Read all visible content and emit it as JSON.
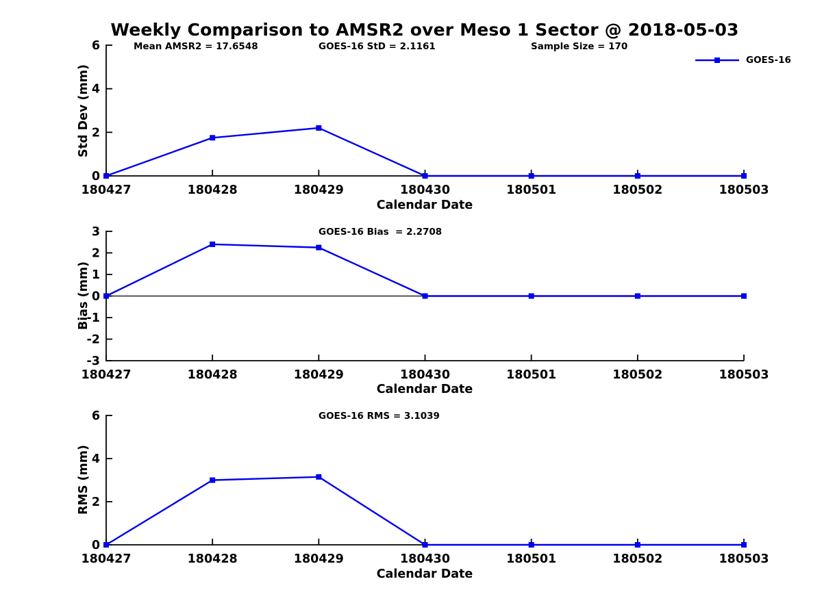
{
  "title": "Weekly Comparison to AMSR2 over Meso 1 Sector @ 2018-05-03",
  "colors": {
    "line": "#0000EE",
    "axis": "#000000",
    "text": "#000000",
    "background": "#FFFFFF"
  },
  "chart_data": [
    {
      "type": "line",
      "categories": [
        "180427",
        "180428",
        "180429",
        "180430",
        "180501",
        "180502",
        "180503"
      ],
      "series": [
        {
          "name": "GOES-16",
          "color": "#0000EE",
          "marker": "filled-square",
          "values": [
            0,
            1.75,
            2.2,
            0,
            0,
            0,
            0
          ]
        }
      ],
      "xlabel": "Calendar Date",
      "ylabel": "Std Dev (mm)",
      "ylim": [
        0,
        6
      ],
      "yticks": [
        0,
        2,
        4,
        6
      ],
      "grid": false,
      "zero_line": false,
      "legend": {
        "visible": true,
        "label": "GOES-16",
        "position": "top-right"
      },
      "annotations": [
        {
          "text": "Mean AMSR2 = 17.6548",
          "position": "above-axes-left"
        },
        {
          "text": "GOES-16 StD = 2.1161",
          "position": "above-axes-center-left"
        },
        {
          "text": "Sample Size = 170",
          "position": "above-axes-right"
        }
      ]
    },
    {
      "type": "line",
      "categories": [
        "180427",
        "180428",
        "180429",
        "180430",
        "180501",
        "180502",
        "180503"
      ],
      "series": [
        {
          "name": "GOES-16",
          "color": "#0000EE",
          "marker": "filled-square",
          "values": [
            0,
            2.4,
            2.25,
            0,
            0,
            0,
            0
          ]
        }
      ],
      "xlabel": "Calendar Date",
      "ylabel": "Bias (mm)",
      "ylim": [
        -3,
        3
      ],
      "yticks": [
        -3,
        -2,
        -1,
        0,
        1,
        2,
        3
      ],
      "grid": false,
      "zero_line": true,
      "legend": {
        "visible": false,
        "label": "GOES-16"
      },
      "annotations": [
        {
          "text": "GOES-16 Bias  = 2.2708",
          "position": "above-axes-center-left"
        }
      ]
    },
    {
      "type": "line",
      "categories": [
        "180427",
        "180428",
        "180429",
        "180430",
        "180501",
        "180502",
        "180503"
      ],
      "series": [
        {
          "name": "GOES-16",
          "color": "#0000EE",
          "marker": "filled-square",
          "values": [
            0,
            3.0,
            3.15,
            0,
            0,
            0,
            0
          ]
        }
      ],
      "xlabel": "Calendar Date",
      "ylabel": "RMS (mm)",
      "ylim": [
        0,
        6
      ],
      "yticks": [
        0,
        2,
        4,
        6
      ],
      "grid": false,
      "zero_line": false,
      "legend": {
        "visible": false,
        "label": "GOES-16"
      },
      "annotations": [
        {
          "text": "GOES-16 RMS = 3.1039",
          "position": "above-axes-center-left"
        }
      ]
    }
  ]
}
